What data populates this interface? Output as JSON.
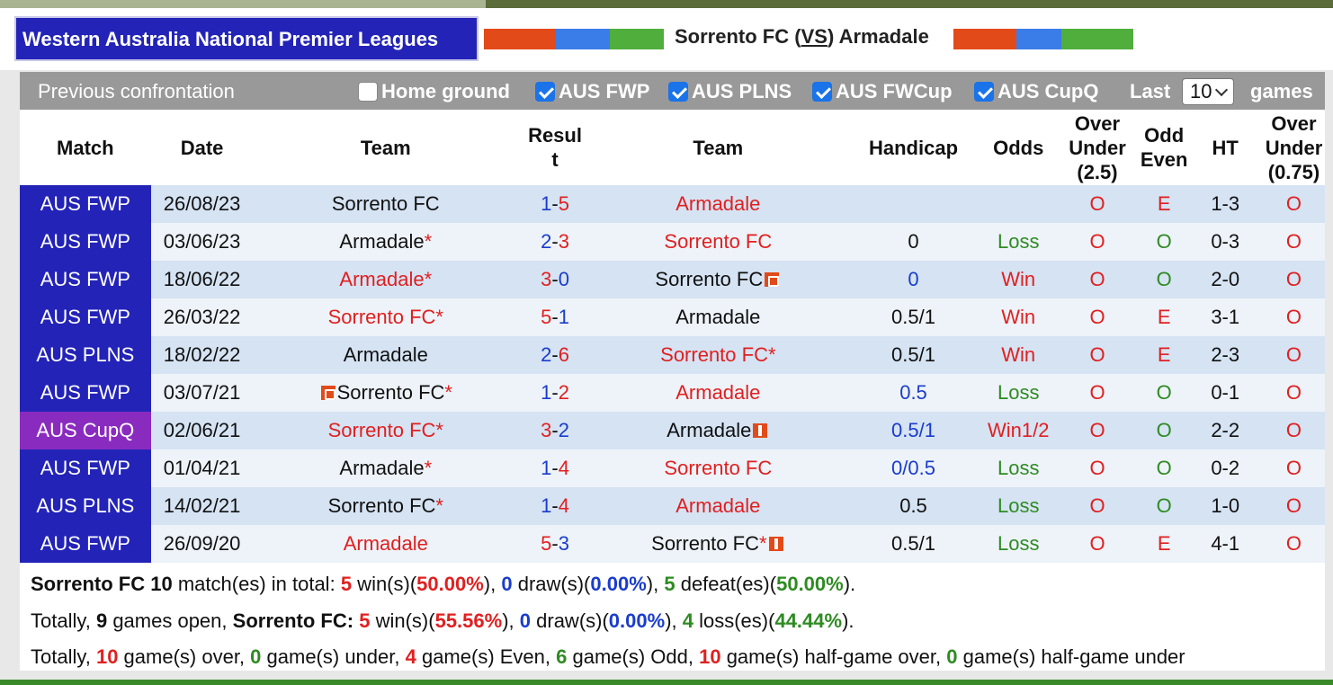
{
  "header": {
    "league": "Western Australia National Premier Leagues",
    "home": "Sorrento FC",
    "vs": "VS",
    "away": "Armadale",
    "colors": {
      "red": "#e34a1a",
      "blue": "#3a7ce8",
      "green": "#4fae3c",
      "league_bg": "#2323b8"
    }
  },
  "toolbar": {
    "title": "Previous confrontation",
    "filters": [
      {
        "label": "Home ground",
        "checked": false
      },
      {
        "label": "AUS FWP",
        "checked": true
      },
      {
        "label": "AUS PLNS",
        "checked": true
      },
      {
        "label": "AUS FWCup",
        "checked": true
      },
      {
        "label": "AUS CupQ",
        "checked": true
      }
    ],
    "last_label": "Last",
    "last_value": "10",
    "games_label": "games"
  },
  "columns": [
    "Match",
    "Date",
    "Team",
    "Result",
    "Team",
    "Handicap",
    "Odds",
    "Over Under (2.5)",
    "Odd Even",
    "HT",
    "Over Under (0.75)"
  ],
  "column_display": {
    "result": [
      "Resul",
      "t"
    ],
    "ou25": [
      "Over",
      "Under",
      "(2.5)"
    ],
    "oe": [
      "Odd",
      "Even"
    ],
    "ou075": [
      "Over",
      "Under",
      "(0.75)"
    ]
  },
  "rows": [
    {
      "match": "AUS FWP",
      "date": "26/08/23",
      "home": "Sorrento FC",
      "home_mark": "",
      "home_red": false,
      "home_icon": "",
      "score_h": "1",
      "score_a": "5",
      "away": "Armadale",
      "away_mark": "",
      "away_red": true,
      "away_icon": "",
      "handicap": "",
      "odds": "",
      "odds_color": "",
      "ou": "O",
      "oe": "E",
      "ht": "1-3",
      "ou2": "O"
    },
    {
      "match": "AUS FWP",
      "date": "03/06/23",
      "home": "Armadale",
      "home_mark": "*",
      "home_red": false,
      "home_icon": "",
      "score_h": "2",
      "score_a": "3",
      "away": "Sorrento FC",
      "away_mark": "",
      "away_red": true,
      "away_icon": "",
      "handicap": "0",
      "odds": "Loss",
      "odds_color": "green",
      "ou": "O",
      "oe": "O",
      "ht": "0-3",
      "ou2": "O"
    },
    {
      "match": "AUS FWP",
      "date": "18/06/22",
      "home": "Armadale",
      "home_mark": "*",
      "home_red": true,
      "home_icon": "",
      "score_h": "3",
      "score_a": "0",
      "away": "Sorrento FC",
      "away_mark": "",
      "away_red": false,
      "away_icon": "red-card-icon",
      "handicap": "0",
      "handicap_blue": true,
      "odds": "Win",
      "odds_color": "red",
      "ou": "O",
      "oe": "O",
      "ht": "2-0",
      "ou2": "O"
    },
    {
      "match": "AUS FWP",
      "date": "26/03/22",
      "home": "Sorrento FC",
      "home_mark": "*",
      "home_red": true,
      "home_icon": "",
      "score_h": "5",
      "score_a": "1",
      "away": "Armadale",
      "away_mark": "",
      "away_red": false,
      "away_icon": "",
      "handicap": "0.5/1",
      "odds": "Win",
      "odds_color": "red",
      "ou": "O",
      "oe": "E",
      "ht": "3-1",
      "ou2": "O"
    },
    {
      "match": "AUS PLNS",
      "date": "18/02/22",
      "home": "Armadale",
      "home_mark": "",
      "home_red": false,
      "home_icon": "",
      "score_h": "2",
      "score_a": "6",
      "away": "Sorrento FC",
      "away_mark": "*",
      "away_red": true,
      "away_icon": "",
      "handicap": "0.5/1",
      "odds": "Win",
      "odds_color": "red",
      "ou": "O",
      "oe": "E",
      "ht": "2-3",
      "ou2": "O"
    },
    {
      "match": "AUS FWP",
      "date": "03/07/21",
      "home": "Sorrento FC",
      "home_mark": "*",
      "home_red": false,
      "home_icon": "red-card-icon",
      "score_h": "1",
      "score_a": "2",
      "away": "Armadale",
      "away_mark": "",
      "away_red": true,
      "away_icon": "",
      "handicap": "0.5",
      "handicap_blue": true,
      "odds": "Loss",
      "odds_color": "green",
      "ou": "O",
      "oe": "O",
      "ht": "0-1",
      "ou2": "O"
    },
    {
      "match": "AUS CupQ",
      "date": "02/06/21",
      "home": "Sorrento FC",
      "home_mark": "*",
      "home_red": true,
      "home_icon": "",
      "score_h": "3",
      "score_a": "2",
      "away": "Armadale",
      "away_mark": "",
      "away_red": false,
      "away_icon": "yellow-card-icon",
      "handicap": "0.5/1",
      "handicap_blue": true,
      "odds": "Win1/2",
      "odds_color": "red",
      "ou": "O",
      "oe": "O",
      "ht": "2-2",
      "ou2": "O"
    },
    {
      "match": "AUS FWP",
      "date": "01/04/21",
      "home": "Armadale",
      "home_mark": "*",
      "home_red": false,
      "home_icon": "",
      "score_h": "1",
      "score_a": "4",
      "away": "Sorrento FC",
      "away_mark": "",
      "away_red": true,
      "away_icon": "",
      "handicap": "0/0.5",
      "handicap_blue": true,
      "odds": "Loss",
      "odds_color": "green",
      "ou": "O",
      "oe": "O",
      "ht": "0-2",
      "ou2": "O"
    },
    {
      "match": "AUS PLNS",
      "date": "14/02/21",
      "home": "Sorrento FC",
      "home_mark": "*",
      "home_red": false,
      "home_icon": "",
      "score_h": "1",
      "score_a": "4",
      "away": "Armadale",
      "away_mark": "",
      "away_red": true,
      "away_icon": "",
      "handicap": "0.5",
      "odds": "Loss",
      "odds_color": "green",
      "ou": "O",
      "oe": "O",
      "ht": "1-0",
      "ou2": "O"
    },
    {
      "match": "AUS FWP",
      "date": "26/09/20",
      "home": "Armadale",
      "home_mark": "",
      "home_red": true,
      "home_icon": "",
      "score_h": "5",
      "score_a": "3",
      "away": "Sorrento FC",
      "away_mark": "*",
      "away_red": false,
      "away_icon": "yellow-card-icon",
      "handicap": "0.5/1",
      "odds": "Loss",
      "odds_color": "green",
      "ou": "O",
      "oe": "E",
      "ht": "4-1",
      "ou2": "O"
    }
  ],
  "summary": {
    "line1": {
      "team": "Sorrento FC",
      "total": "10",
      "t1": " match(es) in total: ",
      "wins": "5",
      "t2": " win(s)(",
      "win_pct": "50.00%",
      "t3": "), ",
      "draws": "0",
      "t4": " draw(s)(",
      "draw_pct": "0.00%",
      "t5": "), ",
      "defeats": "5",
      "t6": " defeat(es)(",
      "defeat_pct": "50.00%",
      "t7": ")."
    },
    "line2": {
      "t0": "Totally, ",
      "open": "9",
      "t1": " games open, ",
      "team": "Sorrento FC:",
      "t2": " ",
      "wins": "5",
      "t3": " win(s)(",
      "win_pct": "55.56%",
      "t4": "), ",
      "draws": "0",
      "t5": " draw(s)(",
      "draw_pct": "0.00%",
      "t6": "), ",
      "losses": "4",
      "t7": " loss(es)(",
      "loss_pct": "44.44%",
      "t8": ")."
    },
    "line3": {
      "t0": "Totally, ",
      "over": "10",
      "t1": " game(s) over, ",
      "under": "0",
      "t2": " game(s) under, ",
      "even": "4",
      "t3": " game(s) Even, ",
      "odd": "6",
      "t4": " game(s) Odd, ",
      "hg_over": "10",
      "t5": " game(s) half-game over, ",
      "hg_under": "0",
      "t6": " game(s) half-game under"
    }
  }
}
